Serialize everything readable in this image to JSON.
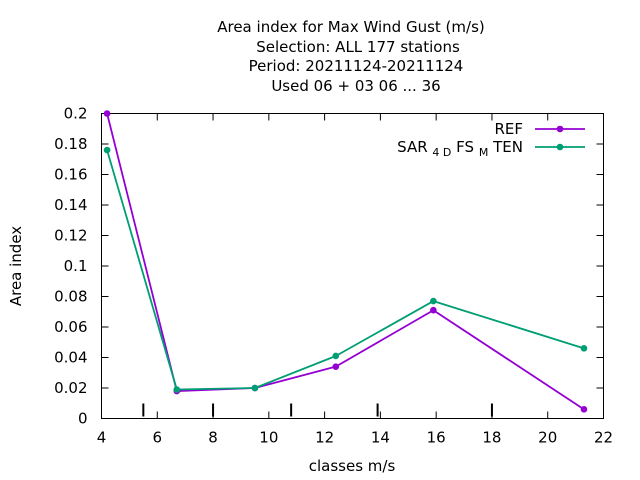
{
  "chart_data": {
    "type": "line",
    "title_lines": [
      "Area index  for Max Wind Gust (m/s)",
      "Selection: ALL    177 stations",
      "Period: 20211124-20211124",
      "Used  06 + 03 06 ... 36"
    ],
    "xlabel": "classes m/s",
    "ylabel": "Area index",
    "xlim": [
      4,
      22
    ],
    "ylim": [
      0,
      0.2
    ],
    "xticks": [
      4,
      6,
      8,
      10,
      12,
      14,
      16,
      18,
      20,
      22
    ],
    "yticks": [
      0,
      0.02,
      0.04,
      0.06,
      0.08,
      0.1,
      0.12,
      0.14,
      0.16,
      0.18,
      0.2
    ],
    "class_boundaries": [
      5.5,
      8,
      10.8,
      13.9,
      18
    ],
    "grid": false,
    "legend_position": "top-right",
    "series": [
      {
        "name": "REF",
        "color": "#9400d3",
        "x": [
          4.2,
          6.7,
          9.5,
          12.4,
          15.9,
          21.3
        ],
        "y": [
          0.2,
          0.018,
          0.02,
          0.034,
          0.071,
          0.006
        ]
      },
      {
        "name_parts": [
          "SAR",
          "4 D",
          "FS",
          "M",
          "TEN"
        ],
        "color": "#009e73",
        "x": [
          4.2,
          6.7,
          9.5,
          12.4,
          15.9,
          21.3
        ],
        "y": [
          0.176,
          0.019,
          0.02,
          0.041,
          0.077,
          0.046
        ]
      }
    ]
  }
}
